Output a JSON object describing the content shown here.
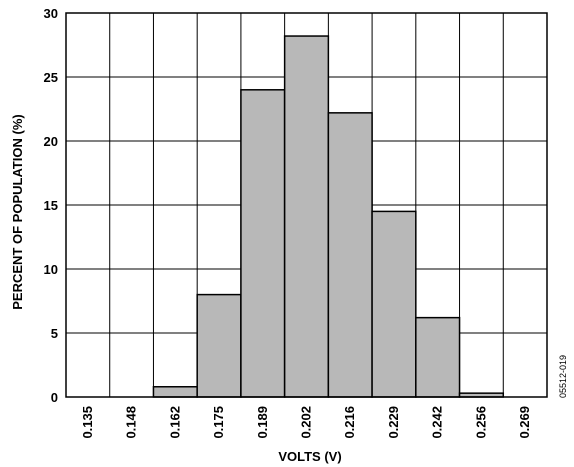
{
  "chart_data": {
    "type": "bar",
    "title": "",
    "xlabel": "VOLTS (V)",
    "ylabel": "PERCENT OF POPULATION (%)",
    "categories": [
      "0.135",
      "0.148",
      "0.162",
      "0.175",
      "0.189",
      "0.202",
      "0.216",
      "0.229",
      "0.242",
      "0.256",
      "0.269"
    ],
    "values": [
      0,
      0,
      0.8,
      8.0,
      24.0,
      28.2,
      22.2,
      14.5,
      6.2,
      0.3,
      0
    ],
    "y_ticks": [
      "0",
      "5",
      "10",
      "15",
      "20",
      "25",
      "30"
    ],
    "y_tick_values": [
      0,
      5,
      10,
      15,
      20,
      25,
      30
    ],
    "ylim": [
      0,
      30
    ],
    "grid": true,
    "bar_color": "#b8b8b8",
    "figure_id": "05512-019"
  }
}
